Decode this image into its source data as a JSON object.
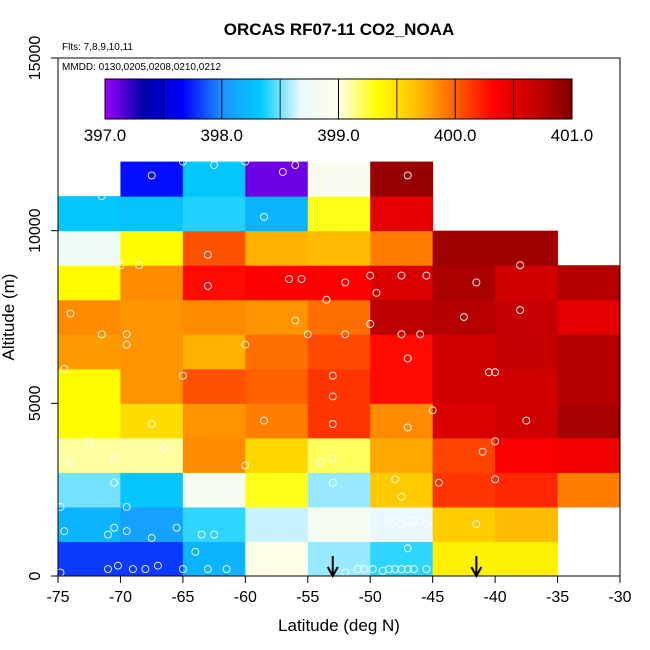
{
  "chart_data": {
    "type": "heatmap",
    "title": "ORCAS RF07-11 CO2_NOAA",
    "subtitle_lines": [
      "Flts: 7,8,9,10,11",
      "MMDD: 0130,0205,0208,0210,0212"
    ],
    "xlabel": "Latitude (deg N)",
    "ylabel": "Altitude (m)",
    "xlim": [
      -75,
      -30
    ],
    "ylim": [
      0,
      15000
    ],
    "x_ticks": [
      -75,
      -70,
      -65,
      -60,
      -55,
      -50,
      -45,
      -40,
      -35,
      -30
    ],
    "y_ticks": [
      0,
      5000,
      10000,
      15000
    ],
    "color_scale": {
      "min": 397.0,
      "max": 401.0,
      "tick_values": [
        397.0,
        398.0,
        399.0,
        400.0,
        401.0
      ],
      "tick_labels": [
        "397.0",
        "398.0",
        "399.0",
        "400.0",
        "401.0"
      ],
      "stops": [
        "#9c00ff",
        "#0000a8",
        "#0000ff",
        "#1e90ff",
        "#00ccff",
        "#e8f8ff",
        "#ffffe8",
        "#ffff00",
        "#ffc000",
        "#ff6000",
        "#ff0000",
        "#c80000",
        "#800000"
      ]
    },
    "x_bin_width": 5,
    "y_bin_height": 1000,
    "cells": [
      {
        "x": -75,
        "y": 0,
        "value": 397.8
      },
      {
        "x": -70,
        "y": 0,
        "value": 397.8
      },
      {
        "x": -65,
        "y": 0,
        "value": 398.2
      },
      {
        "x": -60,
        "y": 0,
        "value": 399.0
      },
      {
        "x": -55,
        "y": 0,
        "value": 398.55
      },
      {
        "x": -50,
        "y": 0,
        "value": 398.4
      },
      {
        "x": -45,
        "y": 0,
        "value": 399.4
      },
      {
        "x": -40,
        "y": 0,
        "value": 399.4
      },
      {
        "x": -75,
        "y": 1000,
        "value": 398.2
      },
      {
        "x": -70,
        "y": 1000,
        "value": 398.1
      },
      {
        "x": -65,
        "y": 1000,
        "value": 398.4
      },
      {
        "x": -60,
        "y": 1000,
        "value": 398.62
      },
      {
        "x": -55,
        "y": 1000,
        "value": 398.85
      },
      {
        "x": -50,
        "y": 1000,
        "value": 398.7
      },
      {
        "x": -45,
        "y": 1000,
        "value": 399.6
      },
      {
        "x": -40,
        "y": 1000,
        "value": 399.68
      },
      {
        "x": -75,
        "y": 2000,
        "value": 398.5
      },
      {
        "x": -70,
        "y": 2000,
        "value": 398.3
      },
      {
        "x": -65,
        "y": 2000,
        "value": 398.85
      },
      {
        "x": -60,
        "y": 2000,
        "value": 399.3
      },
      {
        "x": -55,
        "y": 2000,
        "value": 398.55
      },
      {
        "x": -50,
        "y": 2000,
        "value": 399.62
      },
      {
        "x": -45,
        "y": 2000,
        "value": 400.15
      },
      {
        "x": -40,
        "y": 2000,
        "value": 400.2
      },
      {
        "x": -35,
        "y": 2000,
        "value": 399.9
      },
      {
        "x": -75,
        "y": 3000,
        "value": 399.1
      },
      {
        "x": -70,
        "y": 3000,
        "value": 399.1
      },
      {
        "x": -65,
        "y": 3000,
        "value": 399.85
      },
      {
        "x": -60,
        "y": 3000,
        "value": 399.55
      },
      {
        "x": -55,
        "y": 3000,
        "value": 399.2
      },
      {
        "x": -50,
        "y": 3000,
        "value": 399.75
      },
      {
        "x": -45,
        "y": 3000,
        "value": 400.1
      },
      {
        "x": -40,
        "y": 3000,
        "value": 400.35
      },
      {
        "x": -35,
        "y": 3000,
        "value": 400.4
      },
      {
        "x": -75,
        "y": 4000,
        "value": 399.35
      },
      {
        "x": -70,
        "y": 4000,
        "value": 399.52
      },
      {
        "x": -65,
        "y": 4000,
        "value": 399.82
      },
      {
        "x": -60,
        "y": 4000,
        "value": 399.9
      },
      {
        "x": -55,
        "y": 4000,
        "value": 400.15
      },
      {
        "x": -50,
        "y": 4000,
        "value": 399.85
      },
      {
        "x": -45,
        "y": 4000,
        "value": 400.55
      },
      {
        "x": -40,
        "y": 4000,
        "value": 400.62
      },
      {
        "x": -35,
        "y": 4000,
        "value": 400.82
      },
      {
        "x": -75,
        "y": 5000,
        "value": 399.35
      },
      {
        "x": -70,
        "y": 5000,
        "value": 399.82
      },
      {
        "x": -65,
        "y": 5000,
        "value": 400.05
      },
      {
        "x": -60,
        "y": 5000,
        "value": 400.0
      },
      {
        "x": -55,
        "y": 5000,
        "value": 400.15
      },
      {
        "x": -50,
        "y": 5000,
        "value": 400.3
      },
      {
        "x": -45,
        "y": 5000,
        "value": 400.62
      },
      {
        "x": -40,
        "y": 5000,
        "value": 400.62
      },
      {
        "x": -35,
        "y": 5000,
        "value": 400.75
      },
      {
        "x": -75,
        "y": 6000,
        "value": 399.8
      },
      {
        "x": -70,
        "y": 6000,
        "value": 399.82
      },
      {
        "x": -65,
        "y": 6000,
        "value": 399.72
      },
      {
        "x": -60,
        "y": 6000,
        "value": 399.95
      },
      {
        "x": -55,
        "y": 6000,
        "value": 400.08
      },
      {
        "x": -50,
        "y": 6000,
        "value": 400.3
      },
      {
        "x": -45,
        "y": 6000,
        "value": 400.62
      },
      {
        "x": -40,
        "y": 6000,
        "value": 400.68
      },
      {
        "x": -35,
        "y": 6000,
        "value": 400.75
      },
      {
        "x": -75,
        "y": 7000,
        "value": 399.85
      },
      {
        "x": -70,
        "y": 7000,
        "value": 399.82
      },
      {
        "x": -65,
        "y": 7000,
        "value": 399.85
      },
      {
        "x": -60,
        "y": 7000,
        "value": 399.82
      },
      {
        "x": -55,
        "y": 7000,
        "value": 399.95
      },
      {
        "x": -50,
        "y": 7000,
        "value": 400.72
      },
      {
        "x": -45,
        "y": 7000,
        "value": 400.75
      },
      {
        "x": -40,
        "y": 7000,
        "value": 400.68
      },
      {
        "x": -35,
        "y": 7000,
        "value": 400.5
      },
      {
        "x": -75,
        "y": 8000,
        "value": 399.35
      },
      {
        "x": -70,
        "y": 8000,
        "value": 399.85
      },
      {
        "x": -65,
        "y": 8000,
        "value": 400.3
      },
      {
        "x": -60,
        "y": 8000,
        "value": 400.35
      },
      {
        "x": -55,
        "y": 8000,
        "value": 400.35
      },
      {
        "x": -50,
        "y": 8000,
        "value": 400.55
      },
      {
        "x": -45,
        "y": 8000,
        "value": 400.8
      },
      {
        "x": -40,
        "y": 8000,
        "value": 400.62
      },
      {
        "x": -35,
        "y": 8000,
        "value": 400.75
      },
      {
        "x": -75,
        "y": 9000,
        "value": 398.8
      },
      {
        "x": -70,
        "y": 9000,
        "value": 399.35
      },
      {
        "x": -65,
        "y": 9000,
        "value": 400.05
      },
      {
        "x": -60,
        "y": 9000,
        "value": 399.72
      },
      {
        "x": -55,
        "y": 9000,
        "value": 399.68
      },
      {
        "x": -50,
        "y": 9000,
        "value": 399.9
      },
      {
        "x": -45,
        "y": 9000,
        "value": 400.85
      },
      {
        "x": -40,
        "y": 9000,
        "value": 400.85
      },
      {
        "x": -75,
        "y": 10000,
        "value": 398.3
      },
      {
        "x": -70,
        "y": 10000,
        "value": 398.28
      },
      {
        "x": -65,
        "y": 10000,
        "value": 398.38
      },
      {
        "x": -60,
        "y": 10000,
        "value": 398.2
      },
      {
        "x": -55,
        "y": 10000,
        "value": 399.3
      },
      {
        "x": -50,
        "y": 10000,
        "value": 400.5
      },
      {
        "x": -70,
        "y": 11000,
        "value": 397.7
      },
      {
        "x": -65,
        "y": 11000,
        "value": 398.3
      },
      {
        "x": -60,
        "y": 11000,
        "value": 397.1
      },
      {
        "x": -55,
        "y": 11000,
        "value": 398.9
      },
      {
        "x": -50,
        "y": 11000,
        "value": 400.9
      }
    ],
    "observation_points": [
      [
        -74.8,
        100
      ],
      [
        -71.0,
        200
      ],
      [
        -70.2,
        300
      ],
      [
        -69.0,
        200
      ],
      [
        -68.0,
        200
      ],
      [
        -67.0,
        300
      ],
      [
        -65.0,
        200
      ],
      [
        -63.0,
        200
      ],
      [
        -61.5,
        200
      ],
      [
        -52.0,
        100
      ],
      [
        -51.0,
        200
      ],
      [
        -50.5,
        200
      ],
      [
        -49.8,
        200
      ],
      [
        -49.0,
        150
      ],
      [
        -48.5,
        200
      ],
      [
        -48.0,
        200
      ],
      [
        -47.5,
        200
      ],
      [
        -47.0,
        200
      ],
      [
        -46.5,
        200
      ],
      [
        -64.0,
        700
      ],
      [
        -59.0,
        700
      ],
      [
        -47.0,
        800
      ],
      [
        -45.5,
        200
      ],
      [
        -74.5,
        1300
      ],
      [
        -71.0,
        1200
      ],
      [
        -70.5,
        1400
      ],
      [
        -69.5,
        1300
      ],
      [
        -67.5,
        1100
      ],
      [
        -65.5,
        1400
      ],
      [
        -63.5,
        1200
      ],
      [
        -62.5,
        1200
      ],
      [
        -48.5,
        1600
      ],
      [
        -48.0,
        1600
      ],
      [
        -47.5,
        1500
      ],
      [
        -47.0,
        1600
      ],
      [
        -46.5,
        1600
      ],
      [
        -46.0,
        1600
      ],
      [
        -45.5,
        1500
      ],
      [
        -41.5,
        1500
      ],
      [
        -74.8,
        2000
      ],
      [
        -70.5,
        2700
      ],
      [
        -69.5,
        2000
      ],
      [
        -61.0,
        2600
      ],
      [
        -53.0,
        2700
      ],
      [
        -48.0,
        2800
      ],
      [
        -47.5,
        2300
      ],
      [
        -44.5,
        2700
      ],
      [
        -40.0,
        2800
      ],
      [
        -74.0,
        3300
      ],
      [
        -70.5,
        3400
      ],
      [
        -66.5,
        3700
      ],
      [
        -60.0,
        3200
      ],
      [
        -54.0,
        3300
      ],
      [
        -53.0,
        3400
      ],
      [
        -41.0,
        3600
      ],
      [
        -40.0,
        3900
      ],
      [
        -72.5,
        3900
      ],
      [
        -67.5,
        4400
      ],
      [
        -58.5,
        4500
      ],
      [
        -53.0,
        4400
      ],
      [
        -47.0,
        4300
      ],
      [
        -45.0,
        4800
      ],
      [
        -37.5,
        4500
      ],
      [
        -53.0,
        5200
      ],
      [
        -53.0,
        5800
      ],
      [
        -65.0,
        5800
      ],
      [
        -40.5,
        5900
      ],
      [
        -40.0,
        5900
      ],
      [
        -47.0,
        6300
      ],
      [
        -74.5,
        6000
      ],
      [
        -69.5,
        6700
      ],
      [
        -60.0,
        6700
      ],
      [
        -55.0,
        7000
      ],
      [
        -71.5,
        7000
      ],
      [
        -69.5,
        7000
      ],
      [
        -52.0,
        7000
      ],
      [
        -50.0,
        7300
      ],
      [
        -47.5,
        7000
      ],
      [
        -46.0,
        7000
      ],
      [
        -74.0,
        7600
      ],
      [
        -56.0,
        7400
      ],
      [
        -42.5,
        7500
      ],
      [
        -38.0,
        7700
      ],
      [
        -53.5,
        8000
      ],
      [
        -63.0,
        8400
      ],
      [
        -56.5,
        8600
      ],
      [
        -55.5,
        8600
      ],
      [
        -52.0,
        8500
      ],
      [
        -50.0,
        8700
      ],
      [
        -47.5,
        8700
      ],
      [
        -45.5,
        8700
      ],
      [
        -49.5,
        8200
      ],
      [
        -41.5,
        8500
      ],
      [
        -70.0,
        9000
      ],
      [
        -68.5,
        9000
      ],
      [
        -63.0,
        9300
      ],
      [
        -38.0,
        9000
      ],
      [
        -58.5,
        10400
      ],
      [
        -71.5,
        11000
      ],
      [
        -67.5,
        11600
      ],
      [
        -65.0,
        12000
      ],
      [
        -62.5,
        11900
      ],
      [
        -60.0,
        12000
      ],
      [
        -57.0,
        11700
      ],
      [
        -56.0,
        11900
      ],
      [
        -47.0,
        11600
      ]
    ],
    "arrow_markers": [
      -53.0,
      -41.5
    ],
    "colorbar_position": "top-left inside plot"
  }
}
